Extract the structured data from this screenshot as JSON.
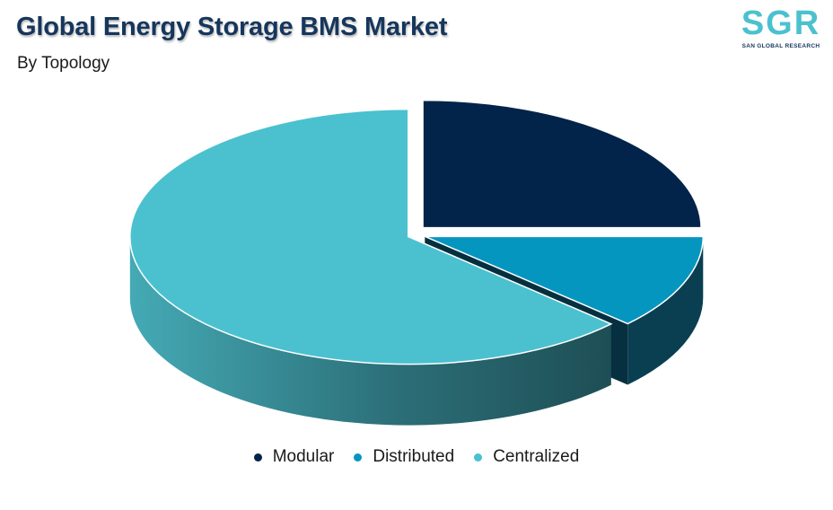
{
  "header": {
    "title": "Global Energy Storage BMS Market",
    "subtitle": "By Topology"
  },
  "logo": {
    "mark": "SGR",
    "tagline": "SAN GLOBAL RESEARCH",
    "color": "#4bc1cf"
  },
  "chart_data": {
    "type": "pie",
    "style": "3d-exploded",
    "title": "Global Energy Storage BMS Market",
    "subtitle": "By Topology",
    "legend_placement": "bottom",
    "categories": [
      "Modular",
      "Distributed",
      "Centralized"
    ],
    "values": [
      25,
      12,
      63
    ],
    "colors": [
      "#03244a",
      "#0596c0",
      "#4bc1cf"
    ],
    "side_colors": [
      "#021a34",
      "#0a3f52",
      "#2f8a94"
    ]
  }
}
